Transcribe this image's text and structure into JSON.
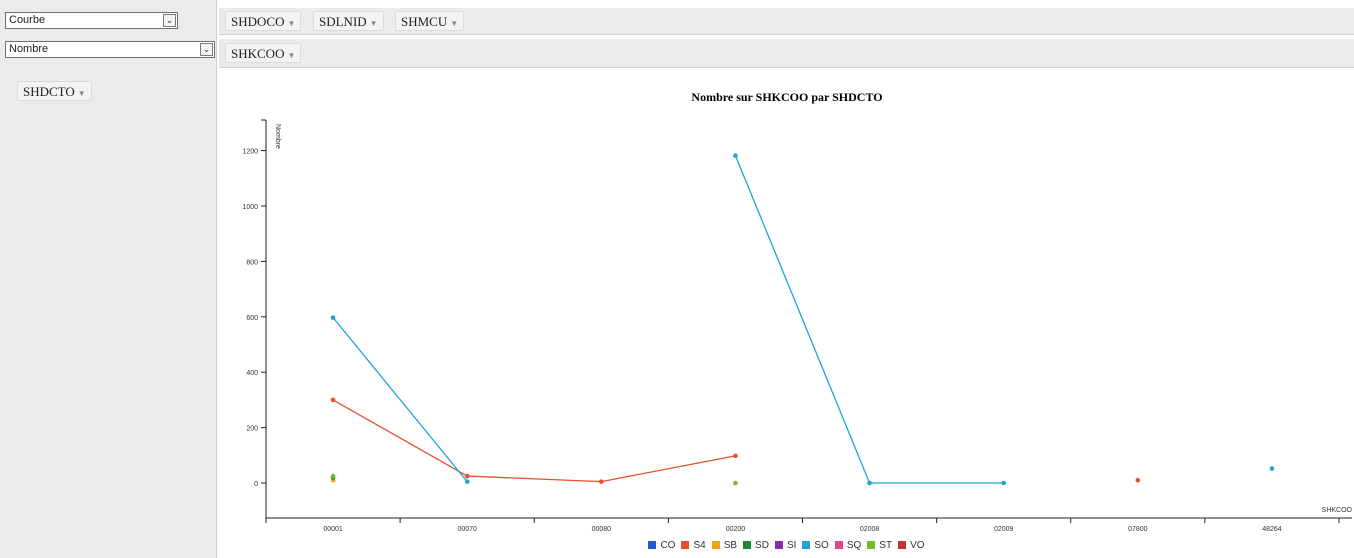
{
  "controls": {
    "chart_type_select": "Courbe",
    "measure_select": "Nombre"
  },
  "columns_bar": [
    {
      "label": "SHDOCO"
    },
    {
      "label": "SDLNID"
    },
    {
      "label": "SHMCU"
    }
  ],
  "x_field_pill": "SHKCOO",
  "series_field_pill": "SHDCTO",
  "chart_data": {
    "type": "line",
    "title": "Nombre sur SHKCOO par SHDCTO",
    "xlabel": "SHKCOO",
    "ylabel": "Nombre",
    "ylim": [
      -120,
      1300
    ],
    "yticks": [
      0,
      200,
      400,
      600,
      800,
      1000,
      1200
    ],
    "categories": [
      "00001",
      "00070",
      "00080",
      "00200",
      "02008",
      "02009",
      "07800",
      "48264"
    ],
    "grid": false,
    "legend_position": "bottom",
    "series": [
      {
        "name": "CO",
        "color": "#1f5fd1",
        "values": [
          null,
          null,
          null,
          null,
          null,
          null,
          null,
          null
        ]
      },
      {
        "name": "S4",
        "color": "#e8502a",
        "values": [
          300,
          25,
          5,
          98,
          null,
          null,
          10,
          null
        ]
      },
      {
        "name": "SB",
        "color": "#f2a31b",
        "values": [
          10,
          null,
          null,
          null,
          null,
          null,
          null,
          null
        ]
      },
      {
        "name": "SD",
        "color": "#1e8a2e",
        "values": [
          20,
          null,
          null,
          null,
          null,
          null,
          null,
          null
        ]
      },
      {
        "name": "SI",
        "color": "#8a2ab0",
        "values": [
          null,
          null,
          null,
          null,
          null,
          null,
          null,
          null
        ]
      },
      {
        "name": "SO",
        "color": "#1ca4d6",
        "values": [
          597,
          5,
          null,
          1182,
          0,
          0,
          null,
          52
        ]
      },
      {
        "name": "SQ",
        "color": "#e0448a",
        "values": [
          null,
          null,
          null,
          null,
          null,
          null,
          null,
          null
        ]
      },
      {
        "name": "ST",
        "color": "#79b829",
        "values": [
          25,
          null,
          null,
          0,
          null,
          null,
          null,
          null
        ]
      },
      {
        "name": "VO",
        "color": "#c2312e",
        "values": [
          null,
          null,
          null,
          null,
          null,
          null,
          null,
          null
        ]
      }
    ]
  }
}
